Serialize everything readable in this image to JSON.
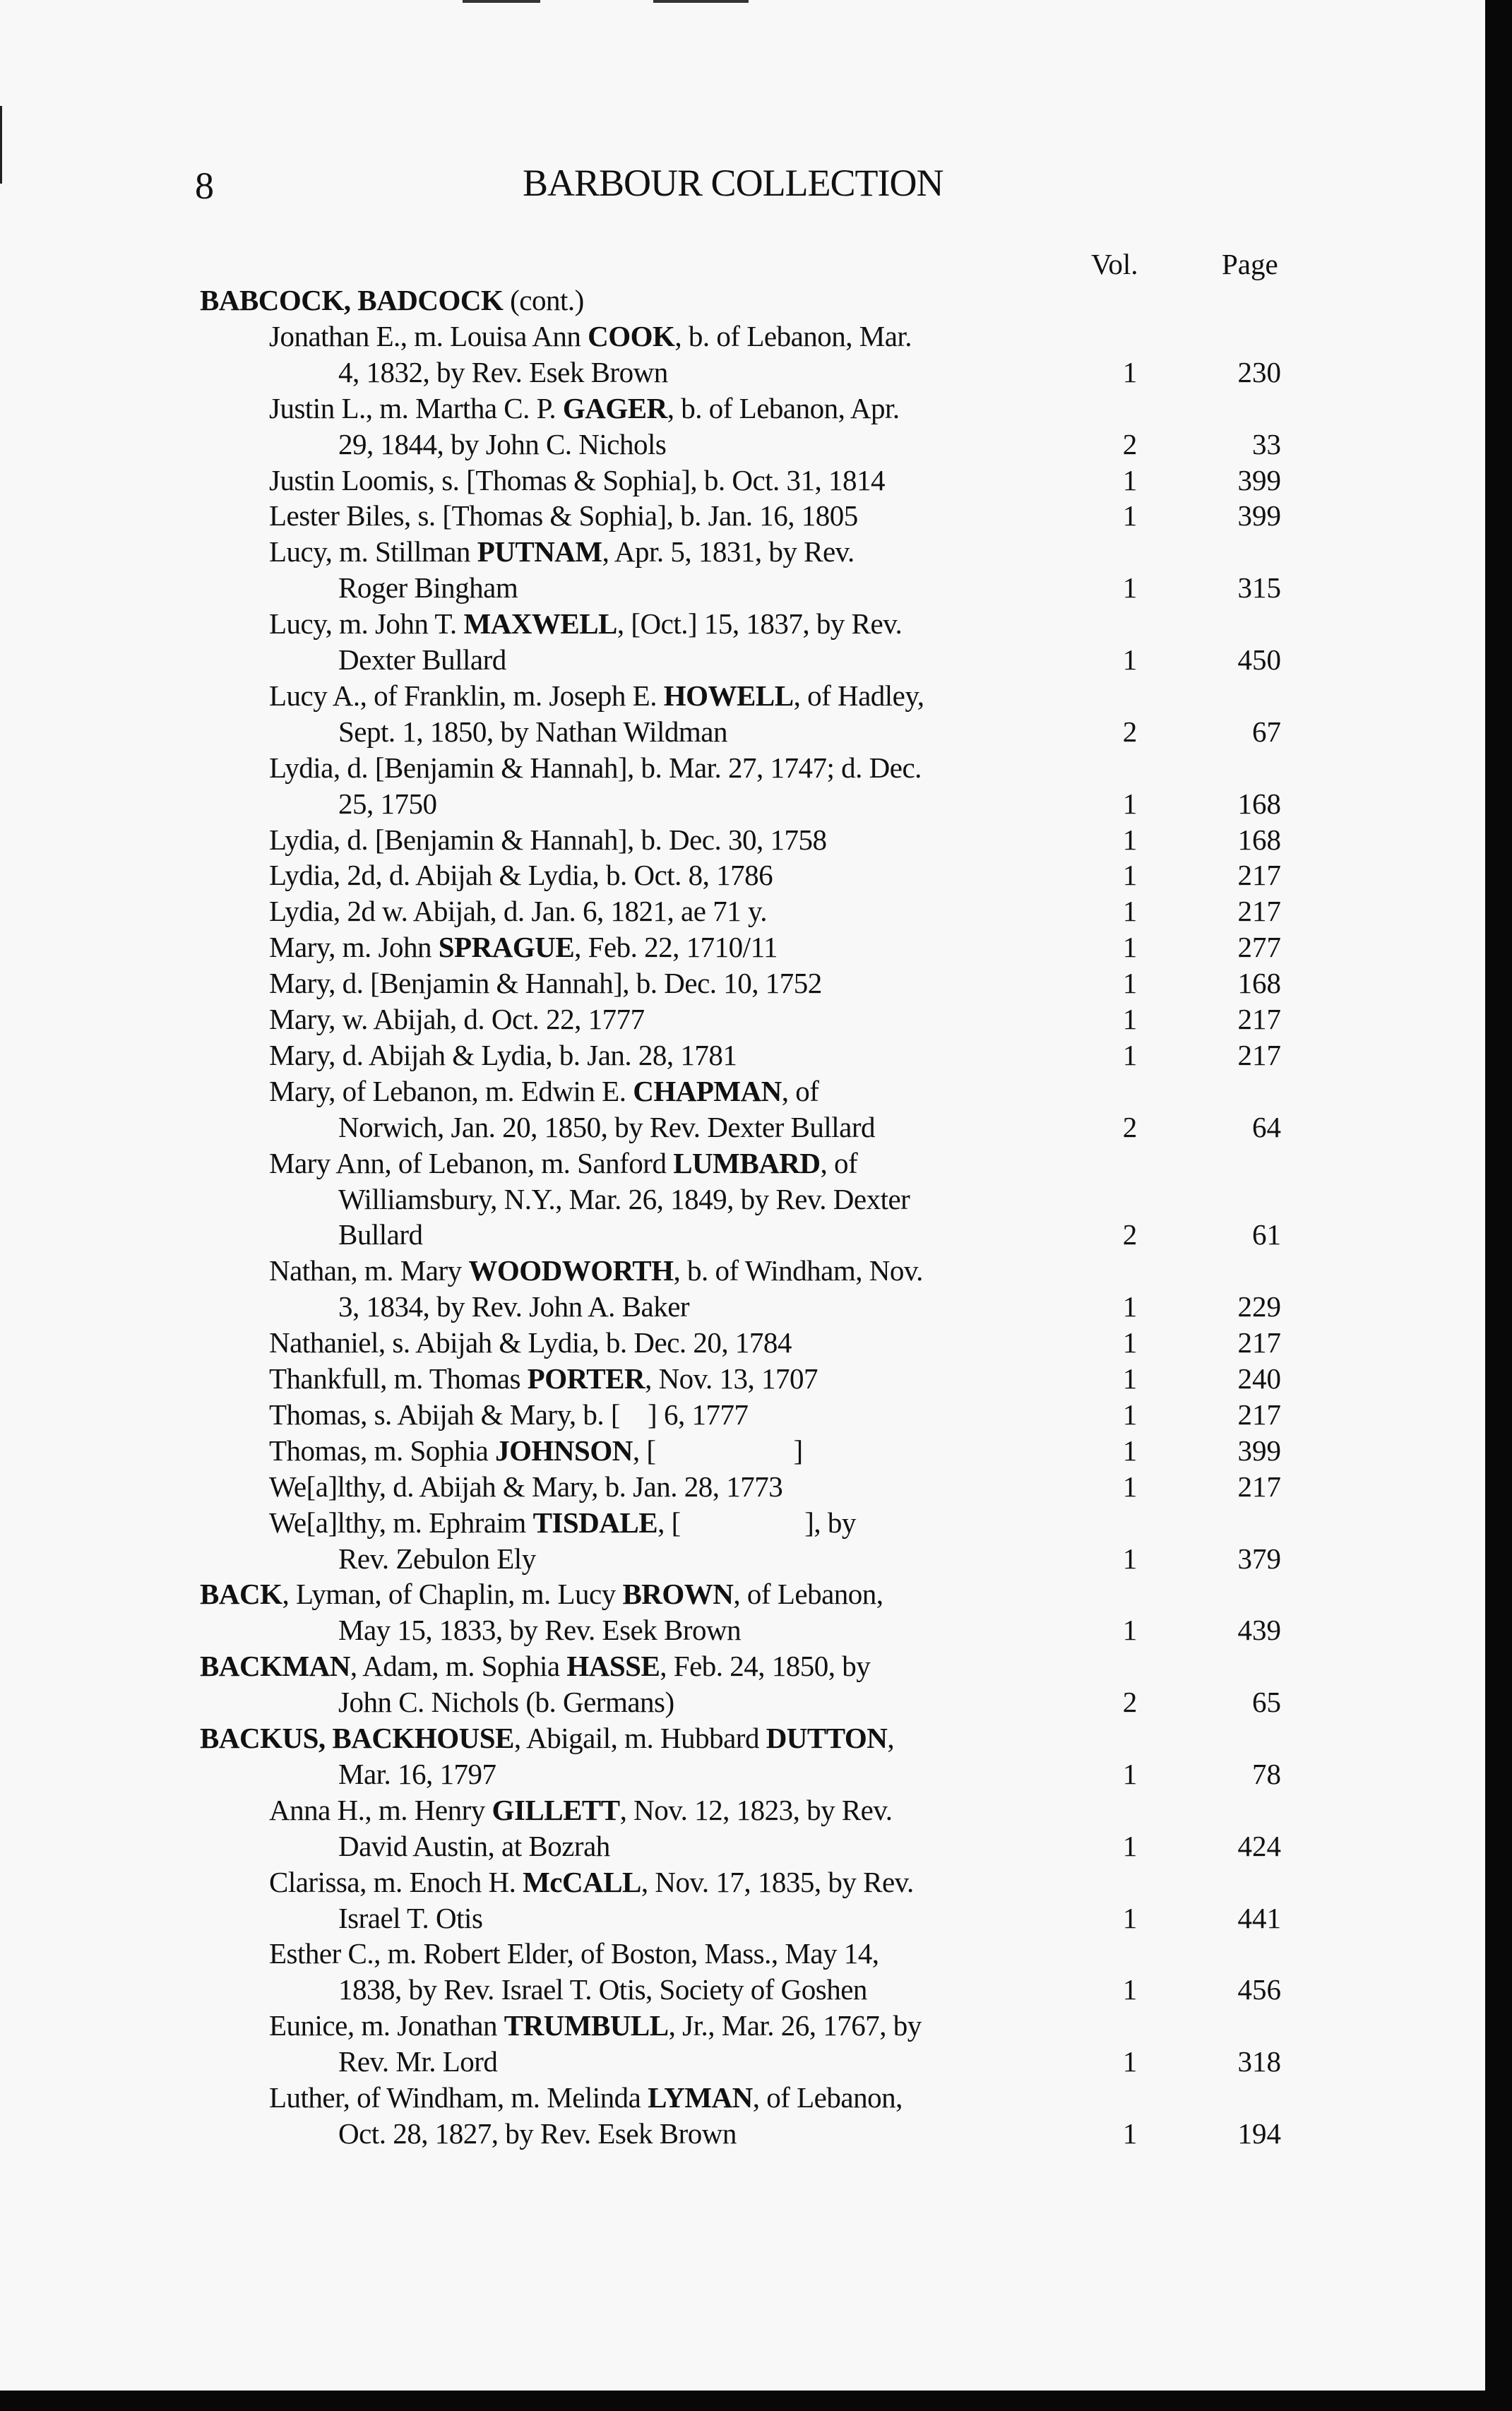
{
  "header": {
    "page_number": "8",
    "title": "BARBOUR COLLECTION"
  },
  "columns": {
    "vol": "Vol.",
    "page": "Page"
  },
  "entries": [
    {
      "indent": 0,
      "lines": [
        [
          {
            "b": "BABCOCK, BADCOCK"
          },
          " (cont.)"
        ]
      ]
    },
    {
      "indent": 1,
      "lines": [
        [
          "Jonathan E., m. Louisa Ann ",
          {
            "b": "COOK"
          },
          ", b. of Lebanon, Mar."
        ],
        [
          "4, 1832, by Rev. Esek Brown"
        ]
      ],
      "vol": "1",
      "page": "230"
    },
    {
      "indent": 1,
      "lines": [
        [
          "Justin L., m. Martha C. P. ",
          {
            "b": "GAGER"
          },
          ", b. of Lebanon, Apr."
        ],
        [
          "29, 1844, by John C. Nichols"
        ]
      ],
      "vol": "2",
      "page": "33"
    },
    {
      "indent": 1,
      "lines": [
        [
          "Justin Loomis, s. [Thomas & Sophia], b. Oct. 31, 1814"
        ]
      ],
      "vol": "1",
      "page": "399"
    },
    {
      "indent": 1,
      "lines": [
        [
          "Lester Biles, s. [Thomas & Sophia], b. Jan. 16, 1805"
        ]
      ],
      "vol": "1",
      "page": "399"
    },
    {
      "indent": 1,
      "lines": [
        [
          "Lucy, m. Stillman ",
          {
            "b": "PUTNAM"
          },
          ", Apr. 5, 1831, by Rev."
        ],
        [
          "Roger Bingham"
        ]
      ],
      "vol": "1",
      "page": "315"
    },
    {
      "indent": 1,
      "lines": [
        [
          "Lucy, m. John T. ",
          {
            "b": "MAXWELL"
          },
          ", [Oct.] 15, 1837, by Rev."
        ],
        [
          "Dexter Bullard"
        ]
      ],
      "vol": "1",
      "page": "450"
    },
    {
      "indent": 1,
      "lines": [
        [
          "Lucy A., of Franklin, m. Joseph E. ",
          {
            "b": "HOWELL"
          },
          ", of Hadley,"
        ],
        [
          "Sept. 1, 1850, by Nathan Wildman"
        ]
      ],
      "vol": "2",
      "page": "67"
    },
    {
      "indent": 1,
      "lines": [
        [
          "Lydia, d. [Benjamin & Hannah], b. Mar. 27, 1747; d. Dec."
        ],
        [
          "25, 1750"
        ]
      ],
      "vol": "1",
      "page": "168"
    },
    {
      "indent": 1,
      "lines": [
        [
          "Lydia, d. [Benjamin & Hannah], b. Dec. 30, 1758"
        ]
      ],
      "vol": "1",
      "page": "168"
    },
    {
      "indent": 1,
      "lines": [
        [
          "Lydia, 2d, d. Abijah & Lydia, b. Oct. 8, 1786"
        ]
      ],
      "vol": "1",
      "page": "217"
    },
    {
      "indent": 1,
      "lines": [
        [
          "Lydia, 2d w. Abijah, d. Jan. 6, 1821, ae 71 y."
        ]
      ],
      "vol": "1",
      "page": "217"
    },
    {
      "indent": 1,
      "lines": [
        [
          "Mary, m. John ",
          {
            "b": "SPRAGUE"
          },
          ", Feb. 22, 1710/11"
        ]
      ],
      "vol": "1",
      "page": "277"
    },
    {
      "indent": 1,
      "lines": [
        [
          "Mary, d. [Benjamin & Hannah], b. Dec. 10, 1752"
        ]
      ],
      "vol": "1",
      "page": "168"
    },
    {
      "indent": 1,
      "lines": [
        [
          "Mary, w. Abijah, d. Oct. 22, 1777"
        ]
      ],
      "vol": "1",
      "page": "217"
    },
    {
      "indent": 1,
      "lines": [
        [
          "Mary, d. Abijah & Lydia, b. Jan. 28, 1781"
        ]
      ],
      "vol": "1",
      "page": "217"
    },
    {
      "indent": 1,
      "lines": [
        [
          "Mary, of Lebanon, m. Edwin E. ",
          {
            "b": "CHAPMAN"
          },
          ", of"
        ],
        [
          "Norwich, Jan. 20, 1850, by Rev. Dexter Bullard"
        ]
      ],
      "vol": "2",
      "page": "64"
    },
    {
      "indent": 1,
      "lines": [
        [
          "Mary Ann, of Lebanon, m. Sanford ",
          {
            "b": "LUMBARD"
          },
          ", of"
        ],
        [
          "Williamsbury, N.Y., Mar. 26, 1849, by Rev. Dexter"
        ],
        [
          "Bullard"
        ]
      ],
      "vol": "2",
      "page": "61"
    },
    {
      "indent": 1,
      "lines": [
        [
          "Nathan, m. Mary ",
          {
            "b": "WOODWORTH"
          },
          ", b. of Windham, Nov."
        ],
        [
          "3, 1834, by Rev. John A. Baker"
        ]
      ],
      "vol": "1",
      "page": "229"
    },
    {
      "indent": 1,
      "lines": [
        [
          "Nathaniel, s. Abijah & Lydia, b. Dec. 20, 1784"
        ]
      ],
      "vol": "1",
      "page": "217"
    },
    {
      "indent": 1,
      "lines": [
        [
          "Thankfull, m. Thomas ",
          {
            "b": "PORTER"
          },
          ", Nov. 13, 1707"
        ]
      ],
      "vol": "1",
      "page": "240"
    },
    {
      "indent": 1,
      "lines": [
        [
          "Thomas, s. Abijah & Mary, b. [    ] 6, 1777"
        ]
      ],
      "vol": "1",
      "page": "217"
    },
    {
      "indent": 1,
      "lines": [
        [
          "Thomas, m. Sophia ",
          {
            "b": "JOHNSON"
          },
          ", [                    ]"
        ]
      ],
      "vol": "1",
      "page": "399"
    },
    {
      "indent": 1,
      "lines": [
        [
          "We[a]lthy, d. Abijah & Mary, b. Jan. 28, 1773"
        ]
      ],
      "vol": "1",
      "page": "217"
    },
    {
      "indent": 1,
      "lines": [
        [
          "We[a]lthy, m. Ephraim ",
          {
            "b": "TISDALE"
          },
          ", [                  ], by"
        ],
        [
          "Rev. Zebulon Ely"
        ]
      ],
      "vol": "1",
      "page": "379"
    },
    {
      "indent": 0,
      "lines": [
        [
          {
            "b": "BACK"
          },
          ", Lyman, of Chaplin, m. Lucy ",
          {
            "b": "BROWN"
          },
          ", of Lebanon,"
        ],
        [
          "May 15, 1833, by Rev. Esek Brown"
        ]
      ],
      "vol": "1",
      "page": "439"
    },
    {
      "indent": 0,
      "lines": [
        [
          {
            "b": "BACKMAN"
          },
          ", Adam, m. Sophia ",
          {
            "b": "HASSE"
          },
          ", Feb. 24, 1850, by"
        ],
        [
          "John C. Nichols (b. Germans)"
        ]
      ],
      "vol": "2",
      "page": "65"
    },
    {
      "indent": 0,
      "lines": [
        [
          {
            "b": "BACKUS, BACKHOUSE"
          },
          ", Abigail, m. Hubbard ",
          {
            "b": "DUTTON"
          },
          ","
        ],
        [
          "Mar. 16, 1797"
        ]
      ],
      "vol": "1",
      "page": "78"
    },
    {
      "indent": 1,
      "lines": [
        [
          "Anna H., m. Henry ",
          {
            "b": "GILLETT"
          },
          ", Nov. 12, 1823, by Rev."
        ],
        [
          "David Austin, at Bozrah"
        ]
      ],
      "vol": "1",
      "page": "424"
    },
    {
      "indent": 1,
      "lines": [
        [
          "Clarissa, m. Enoch H. ",
          {
            "b": "McCALL"
          },
          ", Nov. 17, 1835, by Rev."
        ],
        [
          "Israel T. Otis"
        ]
      ],
      "vol": "1",
      "page": "441"
    },
    {
      "indent": 1,
      "lines": [
        [
          "Esther C., m. Robert Elder, of Boston, Mass., May 14,"
        ],
        [
          "1838, by Rev. Israel T. Otis, Society of Goshen"
        ]
      ],
      "vol": "1",
      "page": "456"
    },
    {
      "indent": 1,
      "lines": [
        [
          "Eunice, m. Jonathan ",
          {
            "b": "TRUMBULL"
          },
          ", Jr., Mar. 26, 1767, by"
        ],
        [
          "Rev. Mr. Lord"
        ]
      ],
      "vol": "1",
      "page": "318"
    },
    {
      "indent": 1,
      "lines": [
        [
          "Luther, of Windham, m. Melinda ",
          {
            "b": "LYMAN"
          },
          ", of Lebanon,"
        ],
        [
          "Oct. 28, 1827, by Rev. Esek Brown"
        ]
      ],
      "vol": "1",
      "page": "194"
    }
  ]
}
